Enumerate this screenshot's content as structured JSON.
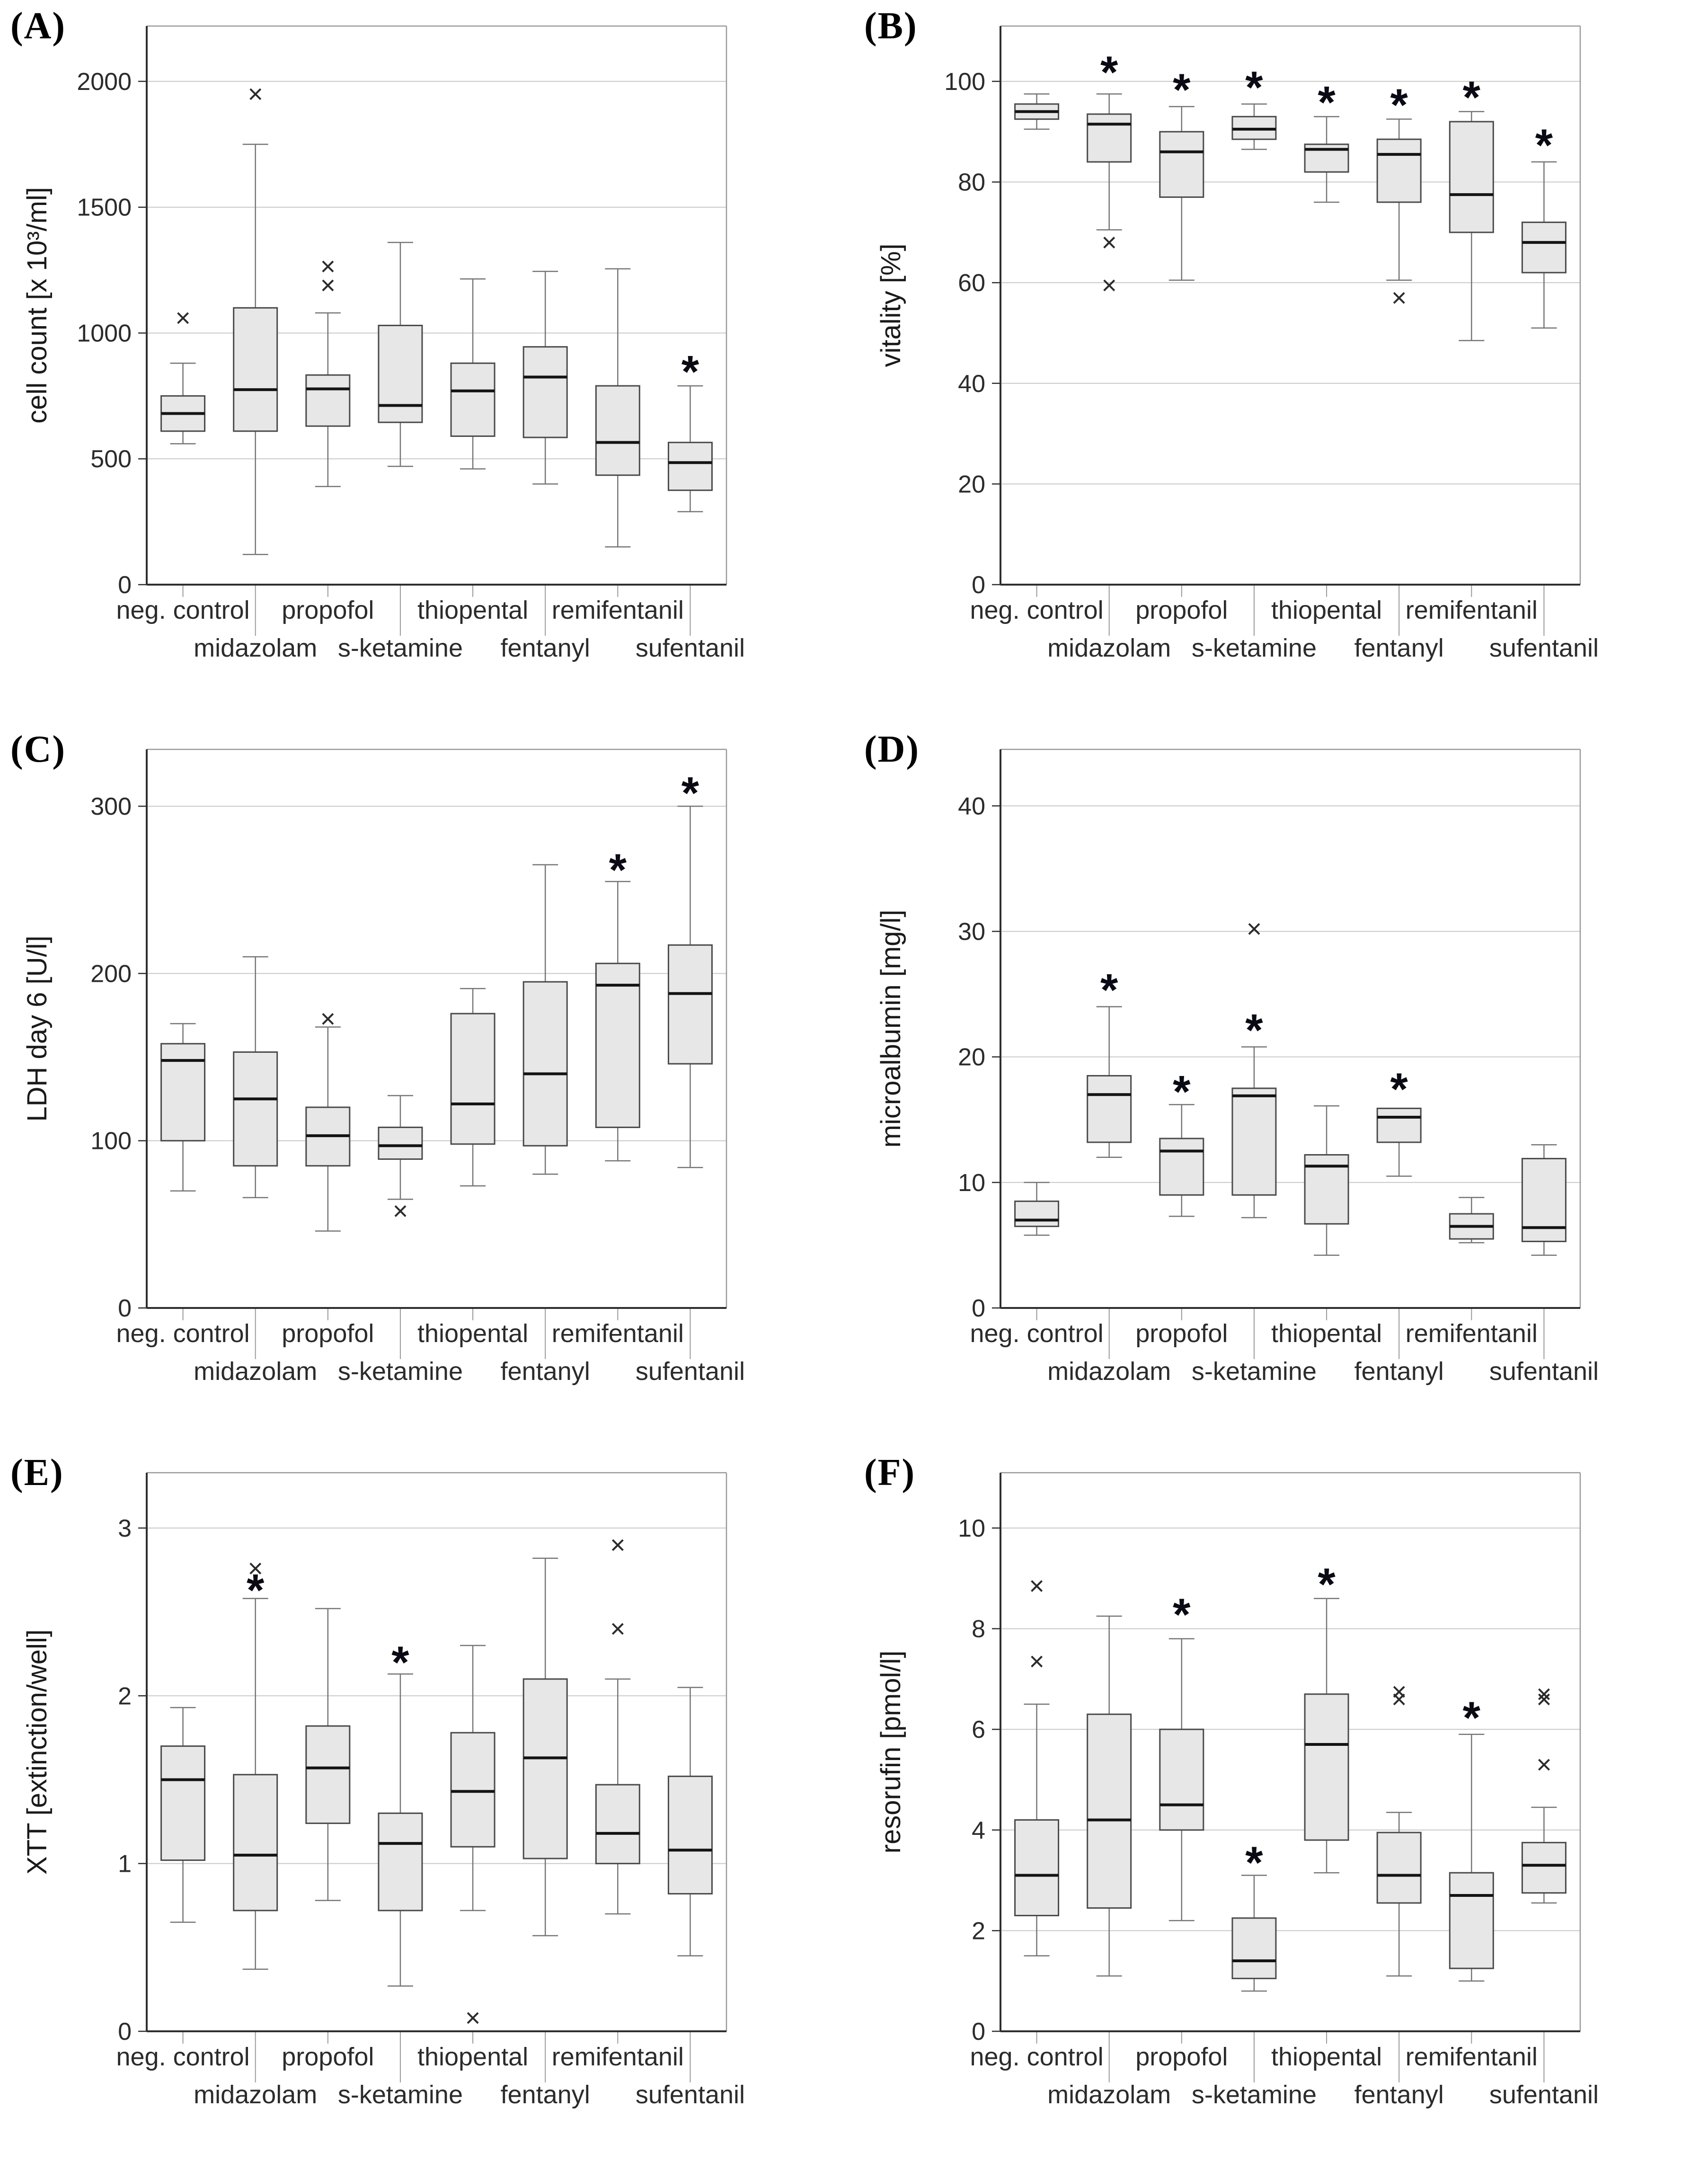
{
  "style": {
    "box_fill": "#e7e7e7",
    "box_stroke": "#4a4a4a",
    "median_color": "#141414",
    "whisker_color": "#757575",
    "grid_color": "#c9c9c9",
    "axis_color": "#2e2e2e",
    "minor_axis_color": "#999999",
    "stagger_line_color": "#9a9a9a",
    "text_color": "#2b2b2b",
    "sig_color": "#0a0a14",
    "outlier_marker": "×",
    "sig_marker": "*"
  },
  "chart_data": [
    {
      "type": "box",
      "panel": "(A)",
      "ylabel": "cell count [x 10³/ml]",
      "ylim": [
        0,
        2220
      ],
      "yticks": [
        0,
        500,
        1000,
        1500,
        2000
      ],
      "grid": "horizontal",
      "categories": [
        "neg. control",
        "midazolam",
        "propofol",
        "s-ketamine",
        "thiopental",
        "fentanyl",
        "remifentanil",
        "sufentanil"
      ],
      "series": [
        {
          "category": "neg. control",
          "low": 560,
          "q1": 610,
          "median": 680,
          "q3": 750,
          "high": 880,
          "outliers": [
            1060
          ],
          "star": null
        },
        {
          "category": "midazolam",
          "low": 120,
          "q1": 610,
          "median": 775,
          "q3": 1100,
          "high": 1750,
          "outliers": [
            1950
          ],
          "star": null
        },
        {
          "category": "propofol",
          "low": 390,
          "q1": 630,
          "median": 778,
          "q3": 833,
          "high": 1080,
          "outliers": [
            1190,
            1265
          ],
          "star": null
        },
        {
          "category": "s-ketamine",
          "low": 470,
          "q1": 645,
          "median": 712,
          "q3": 1030,
          "high": 1360,
          "outliers": [],
          "star": null
        },
        {
          "category": "thiopental",
          "low": 460,
          "q1": 590,
          "median": 770,
          "q3": 880,
          "high": 1215,
          "outliers": [],
          "star": null
        },
        {
          "category": "fentanyl",
          "low": 400,
          "q1": 585,
          "median": 825,
          "q3": 945,
          "high": 1245,
          "outliers": [],
          "star": null
        },
        {
          "category": "remifentanil",
          "low": 150,
          "q1": 435,
          "median": 565,
          "q3": 790,
          "high": 1255,
          "outliers": [],
          "star": null
        },
        {
          "category": "sufentanil",
          "low": 290,
          "q1": 375,
          "median": 485,
          "q3": 565,
          "high": 790,
          "outliers": [],
          "star": 860
        }
      ]
    },
    {
      "type": "box",
      "panel": "(B)",
      "ylabel": "vitality [%]",
      "ylim": [
        0,
        111
      ],
      "yticks": [
        0,
        20,
        40,
        60,
        80,
        100
      ],
      "grid": "horizontal",
      "categories": [
        "neg. control",
        "midazolam",
        "propofol",
        "s-ketamine",
        "thiopental",
        "fentanyl",
        "remifentanil",
        "sufentanil"
      ],
      "series": [
        {
          "category": "neg. control",
          "low": 90.5,
          "q1": 92.5,
          "median": 94,
          "q3": 95.5,
          "high": 97.5,
          "outliers": [],
          "star": null
        },
        {
          "category": "midazolam",
          "low": 70.5,
          "q1": 84,
          "median": 91.5,
          "q3": 93.5,
          "high": 97.5,
          "outliers": [
            68,
            59.5
          ],
          "star": 102.5
        },
        {
          "category": "propofol",
          "low": 60.5,
          "q1": 77,
          "median": 86,
          "q3": 90,
          "high": 95,
          "outliers": [],
          "star": 99
        },
        {
          "category": "s-ketamine",
          "low": 86.5,
          "q1": 88.5,
          "median": 90.5,
          "q3": 93,
          "high": 95.5,
          "outliers": [],
          "star": 99.5
        },
        {
          "category": "thiopental",
          "low": 76,
          "q1": 82,
          "median": 86.5,
          "q3": 87.5,
          "high": 93,
          "outliers": [],
          "star": 96.5
        },
        {
          "category": "fentanyl",
          "low": 60.5,
          "q1": 76,
          "median": 85.5,
          "q3": 88.5,
          "high": 92.5,
          "outliers": [
            57
          ],
          "star": 96
        },
        {
          "category": "remifentanil",
          "low": 48.5,
          "q1": 70,
          "median": 77.5,
          "q3": 92,
          "high": 94,
          "outliers": [],
          "star": 97.5
        },
        {
          "category": "sufentanil",
          "low": 51,
          "q1": 62,
          "median": 68,
          "q3": 72,
          "high": 84,
          "outliers": [],
          "star": 88
        }
      ]
    },
    {
      "type": "box",
      "panel": "(C)",
      "ylabel": "LDH day 6 [U/l]",
      "ylim": [
        0,
        334
      ],
      "yticks": [
        0,
        100,
        200,
        300
      ],
      "grid": "horizontal",
      "categories": [
        "neg. control",
        "midazolam",
        "propofol",
        "s-ketamine",
        "thiopental",
        "fentanyl",
        "remifentanil",
        "sufentanil"
      ],
      "series": [
        {
          "category": "neg. control",
          "low": 70,
          "q1": 100,
          "median": 148,
          "q3": 158,
          "high": 170,
          "outliers": [],
          "star": null
        },
        {
          "category": "midazolam",
          "low": 66,
          "q1": 85,
          "median": 125,
          "q3": 153,
          "high": 210,
          "outliers": [],
          "star": null
        },
        {
          "category": "propofol",
          "low": 46,
          "q1": 85,
          "median": 103,
          "q3": 120,
          "high": 168,
          "outliers": [
            173
          ],
          "star": null
        },
        {
          "category": "s-ketamine",
          "low": 65,
          "q1": 89,
          "median": 97,
          "q3": 108,
          "high": 127,
          "outliers": [
            58
          ],
          "star": null
        },
        {
          "category": "thiopental",
          "low": 73,
          "q1": 98,
          "median": 122,
          "q3": 176,
          "high": 191,
          "outliers": [],
          "star": null
        },
        {
          "category": "fentanyl",
          "low": 80,
          "q1": 97,
          "median": 140,
          "q3": 195,
          "high": 265,
          "outliers": [],
          "star": null
        },
        {
          "category": "remifentanil",
          "low": 88,
          "q1": 108,
          "median": 193,
          "q3": 206,
          "high": 255,
          "outliers": [],
          "star": 264
        },
        {
          "category": "sufentanil",
          "low": 84,
          "q1": 146,
          "median": 188,
          "q3": 217,
          "high": 300,
          "outliers": [],
          "star": 310
        }
      ]
    },
    {
      "type": "box",
      "panel": "(D)",
      "ylabel": "microalbumin [mg/l]",
      "ylim": [
        0,
        44.5
      ],
      "yticks": [
        0,
        10,
        20,
        30,
        40
      ],
      "grid": "horizontal",
      "categories": [
        "neg. control",
        "midazolam",
        "propofol",
        "s-ketamine",
        "thiopental",
        "fentanyl",
        "remifentanil",
        "sufentanil"
      ],
      "series": [
        {
          "category": "neg. control",
          "low": 5.8,
          "q1": 6.5,
          "median": 7.0,
          "q3": 8.5,
          "high": 10.0,
          "outliers": [],
          "star": null
        },
        {
          "category": "midazolam",
          "low": 12.0,
          "q1": 13.2,
          "median": 17.0,
          "q3": 18.5,
          "high": 24.0,
          "outliers": [],
          "star": 25.6
        },
        {
          "category": "propofol",
          "low": 7.3,
          "q1": 9.0,
          "median": 12.5,
          "q3": 13.5,
          "high": 16.2,
          "outliers": [],
          "star": 17.5
        },
        {
          "category": "s-ketamine",
          "low": 7.2,
          "q1": 9.0,
          "median": 16.9,
          "q3": 17.5,
          "high": 20.8,
          "outliers": [
            30.2
          ],
          "star": 22.4
        },
        {
          "category": "thiopental",
          "low": 4.2,
          "q1": 6.7,
          "median": 11.3,
          "q3": 12.2,
          "high": 16.1,
          "outliers": [],
          "star": null
        },
        {
          "category": "fentanyl",
          "low": 10.5,
          "q1": 13.2,
          "median": 15.2,
          "q3": 15.9,
          "high": null,
          "outliers": [],
          "star": 17.7
        },
        {
          "category": "remifentanil",
          "low": 5.2,
          "q1": 5.5,
          "median": 6.5,
          "q3": 7.5,
          "high": 8.8,
          "outliers": [],
          "star": null
        },
        {
          "category": "sufentanil",
          "low": 4.2,
          "q1": 5.3,
          "median": 6.4,
          "q3": 11.9,
          "high": 13.0,
          "outliers": [],
          "star": null
        }
      ]
    },
    {
      "type": "box",
      "panel": "(E)",
      "ylabel": "XTT [extinction/well]",
      "ylim": [
        0,
        3.33
      ],
      "yticks": [
        0,
        1,
        2,
        3
      ],
      "grid": "horizontal",
      "categories": [
        "neg. control",
        "midazolam",
        "propofol",
        "s-ketamine",
        "thiopental",
        "fentanyl",
        "remifentanil",
        "sufentanil"
      ],
      "series": [
        {
          "category": "neg. control",
          "low": 0.65,
          "q1": 1.02,
          "median": 1.5,
          "q3": 1.7,
          "high": 1.93,
          "outliers": [],
          "star": null
        },
        {
          "category": "midazolam",
          "low": 0.37,
          "q1": 0.72,
          "median": 1.05,
          "q3": 1.53,
          "high": 2.58,
          "outliers": [
            2.76
          ],
          "star": 2.65
        },
        {
          "category": "propofol",
          "low": 0.78,
          "q1": 1.24,
          "median": 1.57,
          "q3": 1.82,
          "high": 2.52,
          "outliers": [],
          "star": null
        },
        {
          "category": "s-ketamine",
          "low": 0.27,
          "q1": 0.72,
          "median": 1.12,
          "q3": 1.3,
          "high": 2.13,
          "outliers": [],
          "star": 2.22
        },
        {
          "category": "thiopental",
          "low": 0.72,
          "q1": 1.1,
          "median": 1.43,
          "q3": 1.78,
          "high": 2.3,
          "outliers": [
            0.08
          ],
          "star": null
        },
        {
          "category": "fentanyl",
          "low": 0.57,
          "q1": 1.03,
          "median": 1.63,
          "q3": 2.1,
          "high": 2.82,
          "outliers": [],
          "star": null
        },
        {
          "category": "remifentanil",
          "low": 0.7,
          "q1": 1.0,
          "median": 1.18,
          "q3": 1.47,
          "high": 2.1,
          "outliers": [
            2.4,
            2.9
          ],
          "star": null
        },
        {
          "category": "sufentanil",
          "low": 0.45,
          "q1": 0.82,
          "median": 1.08,
          "q3": 1.52,
          "high": 2.05,
          "outliers": [],
          "star": null
        }
      ]
    },
    {
      "type": "box",
      "panel": "(F)",
      "ylabel": "resorufin [pmol/l]",
      "ylim": [
        0,
        11.1
      ],
      "yticks": [
        0,
        2,
        4,
        6,
        8,
        10
      ],
      "grid": "horizontal",
      "categories": [
        "neg. control",
        "midazolam",
        "propofol",
        "s-ketamine",
        "thiopental",
        "fentanyl",
        "remifentanil",
        "sufentanil"
      ],
      "series": [
        {
          "category": "neg. control",
          "low": 1.5,
          "q1": 2.3,
          "median": 3.1,
          "q3": 4.2,
          "high": 6.5,
          "outliers": [
            7.35,
            8.85
          ],
          "star": null
        },
        {
          "category": "midazolam",
          "low": 1.1,
          "q1": 2.45,
          "median": 4.2,
          "q3": 6.3,
          "high": 8.25,
          "outliers": [],
          "star": null
        },
        {
          "category": "propofol",
          "low": 2.2,
          "q1": 4.0,
          "median": 4.5,
          "q3": 6.0,
          "high": 7.8,
          "outliers": [],
          "star": 8.35
        },
        {
          "category": "s-ketamine",
          "low": 0.8,
          "q1": 1.05,
          "median": 1.4,
          "q3": 2.25,
          "high": 3.1,
          "outliers": [],
          "star": 3.42
        },
        {
          "category": "thiopental",
          "low": 3.15,
          "q1": 3.8,
          "median": 5.7,
          "q3": 6.7,
          "high": 8.6,
          "outliers": [],
          "star": 8.95
        },
        {
          "category": "fentanyl",
          "low": 1.1,
          "q1": 2.55,
          "median": 3.1,
          "q3": 3.95,
          "high": 4.35,
          "outliers": [
            6.6,
            6.75
          ],
          "star": null
        },
        {
          "category": "remifentanil",
          "low": 1.0,
          "q1": 1.25,
          "median": 2.7,
          "q3": 3.15,
          "high": 5.9,
          "outliers": [],
          "star": 6.3
        },
        {
          "category": "sufentanil",
          "low": 2.55,
          "q1": 2.75,
          "median": 3.3,
          "q3": 3.75,
          "high": 4.45,
          "outliers": [
            5.3,
            6.6,
            6.7
          ],
          "star": null
        }
      ]
    }
  ]
}
